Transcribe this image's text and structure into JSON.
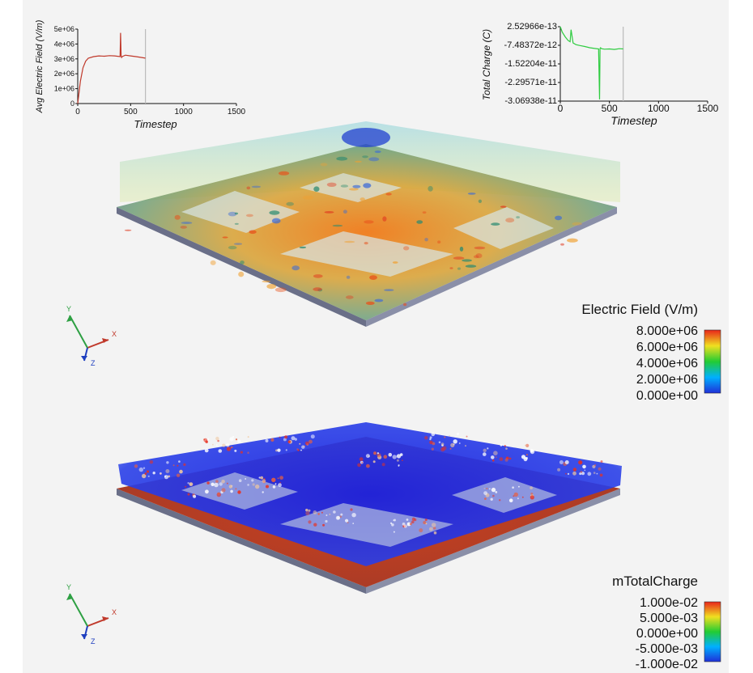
{
  "chart_data": [
    {
      "type": "line",
      "ylabel": "Avg Electric Field (V/m)",
      "xlabel": "Timestep",
      "xlim": [
        0,
        1500
      ],
      "ylim": [
        0,
        5000000
      ],
      "xticks": [
        "0",
        "500",
        "1000",
        "1500"
      ],
      "yticks": [
        "0",
        "1e+06",
        "2e+06",
        "3e+06",
        "4e+06",
        "5e+06"
      ],
      "series": [
        {
          "color": "#c0392b",
          "x": [
            0,
            10,
            25,
            50,
            75,
            100,
            150,
            200,
            250,
            300,
            350,
            400,
            405,
            410,
            415,
            420,
            450,
            500,
            550,
            600,
            640
          ],
          "y": [
            0,
            600000,
            1500000,
            2400000,
            2850000,
            3050000,
            3150000,
            3200000,
            3180000,
            3220000,
            3200000,
            3150000,
            4750000,
            3200000,
            3100000,
            3150000,
            3250000,
            3200000,
            3150000,
            3100000,
            3050000
          ]
        }
      ],
      "current_timestep": 640,
      "color_cursor": "#bbbbbb"
    },
    {
      "type": "line",
      "ylabel": "Total Charge (C)",
      "xlabel": "Timestep",
      "xlim": [
        0,
        1500
      ],
      "ylim": [
        -3.06938e-11,
        2.52966e-13
      ],
      "xticks": [
        "0",
        "500",
        "1000",
        "1500"
      ],
      "yticks": [
        "2.52966e-13",
        "-7.48372e-12",
        "-1.52204e-11",
        "-2.29571e-11",
        "-3.06938e-11"
      ],
      "series": [
        {
          "color": "#2ecc40",
          "x": [
            0,
            20,
            50,
            80,
            100,
            110,
            130,
            160,
            200,
            250,
            300,
            350,
            390,
            400,
            405,
            410,
            420,
            450,
            500,
            550,
            600,
            640
          ],
          "y": [
            2.5e-13,
            -2e-12,
            -4e-12,
            -5.5e-12,
            -6e-12,
            -1e-12,
            -6.5e-12,
            -7.2e-12,
            -7.6e-12,
            -8e-12,
            -8.5e-12,
            -8.8e-12,
            -9e-12,
            -3e-11,
            -8.8e-12,
            -8.5e-12,
            -8.9e-12,
            -9.1e-12,
            -9e-12,
            -9.2e-12,
            -8.9e-12,
            -9e-12
          ]
        }
      ],
      "current_timestep": 640,
      "color_cursor": "#bbbbbb"
    }
  ],
  "colorbars": {
    "top": {
      "title": "Electric Field (V/m)",
      "labels": [
        "8.000e+06",
        "6.000e+06",
        "4.000e+06",
        "2.000e+06",
        "0.000e+00"
      ]
    },
    "bottom": {
      "title": "mTotalCharge",
      "labels": [
        "1.000e-02",
        "5.000e-03",
        "0.000e+00",
        "-5.000e-03",
        "-1.000e-02"
      ]
    }
  },
  "axes": {
    "x": "X",
    "y": "Y",
    "z": "Z"
  },
  "colors": {
    "x_axis": "#c0392b",
    "y_axis": "#2ea043",
    "z_axis": "#1f3fbf",
    "substrate": "#8a8fa8",
    "pad": "#d8e6e6"
  }
}
